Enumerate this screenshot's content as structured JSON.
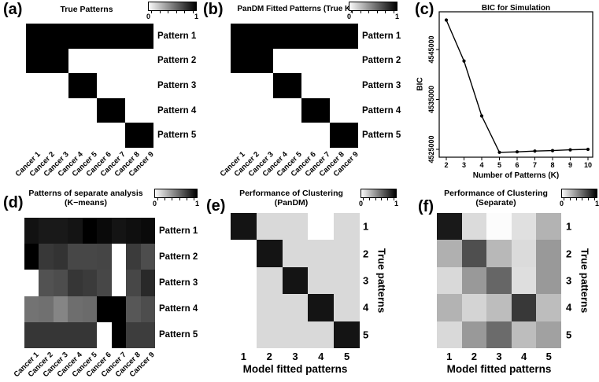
{
  "colorbar": {
    "min_label": "0",
    "max_label": "1"
  },
  "panels": {
    "a": {
      "label": "(a)",
      "title": "True Patterns"
    },
    "b": {
      "label": "(b)",
      "title": "PanDM Fitted Patterns (True K)"
    },
    "c": {
      "label": "(c)",
      "title": "BIC for Simulation",
      "xlabel": "Number of Patterns (K)",
      "ylabel": "BIC"
    },
    "d": {
      "label": "(d)",
      "title_line1": "Patterns of separate analysis",
      "title_line2": "(K−means)"
    },
    "e": {
      "label": "(e)",
      "title_line1": "Performance of Clustering",
      "title_line2": "(PanDM)",
      "xlabel": "Model fitted patterns",
      "ylabel": "True patterns"
    },
    "f": {
      "label": "(f)",
      "title_line1": "Performance of Clustering",
      "title_line2": "(Separate)",
      "xlabel": "Model fitted patterns",
      "ylabel": "True patterns"
    }
  },
  "chart_data": [
    {
      "id": "a",
      "type": "heatmap",
      "title": "True Patterns",
      "x_categories": [
        "Cancer 1",
        "Cancer 2",
        "Cancer 3",
        "Cancer 4",
        "Cancer 5",
        "Cancer 6",
        "Cancer 7",
        "Cancer 8",
        "Cancer 9"
      ],
      "y_categories": [
        "Pattern 1",
        "Pattern 2",
        "Pattern 3",
        "Pattern 4",
        "Pattern 5"
      ],
      "values": [
        [
          1,
          1,
          1,
          1,
          1,
          1,
          1,
          1,
          1
        ],
        [
          1,
          1,
          1,
          0,
          0,
          0,
          0,
          0,
          0
        ],
        [
          0,
          0,
          0,
          1,
          1,
          0,
          0,
          0,
          0
        ],
        [
          0,
          0,
          0,
          0,
          0,
          1,
          1,
          0,
          0
        ],
        [
          0,
          0,
          0,
          0,
          0,
          0,
          0,
          1,
          1
        ]
      ],
      "colorscale": {
        "0": "#ffffff",
        "1": "#000000"
      }
    },
    {
      "id": "b",
      "type": "heatmap",
      "title": "PanDM Fitted Patterns (True K)",
      "x_categories": [
        "Cancer 1",
        "Cancer 2",
        "Cancer 3",
        "Cancer 4",
        "Cancer 5",
        "Cancer 6",
        "Cancer 7",
        "Cancer 8",
        "Cancer 9"
      ],
      "y_categories": [
        "Pattern 1",
        "Pattern 2",
        "Pattern 3",
        "Pattern 4",
        "Pattern 5"
      ],
      "values": [
        [
          1,
          1,
          1,
          1,
          1,
          1,
          1,
          1,
          1
        ],
        [
          1,
          1,
          1,
          0,
          0,
          0,
          0,
          0,
          0
        ],
        [
          0,
          0,
          0,
          1,
          1,
          0,
          0,
          0,
          0
        ],
        [
          0,
          0,
          0,
          0,
          0,
          1,
          1,
          0,
          0
        ],
        [
          0,
          0,
          0,
          0,
          0,
          0,
          0,
          1,
          1
        ]
      ],
      "colorscale": {
        "0": "#ffffff",
        "1": "#000000"
      }
    },
    {
      "id": "c",
      "type": "line",
      "title": "BIC for Simulation",
      "xlabel": "Number of Patterns (K)",
      "ylabel": "BIC",
      "x": [
        2,
        3,
        4,
        5,
        6,
        7,
        8,
        9,
        10
      ],
      "y": [
        4550900,
        4542700,
        4531700,
        4524400,
        4524500,
        4524650,
        4524750,
        4524900,
        4525000
      ],
      "xticks": [
        2,
        3,
        4,
        5,
        6,
        7,
        8,
        9,
        10
      ],
      "yticks": [
        4525000,
        4535000,
        4545000
      ],
      "ylim": [
        4523400,
        4552600
      ],
      "marker": "filled-circle",
      "line_color": "#000000",
      "grid": false
    },
    {
      "id": "d",
      "type": "heatmap",
      "title": "Patterns of separate analysis (K-means)",
      "x_categories": [
        "Cancer 1",
        "Cancer 2",
        "Cancer 3",
        "Cancer 4",
        "Cancer 5",
        "Cancer 6",
        "Cancer 7",
        "Cancer 8",
        "Cancer 9"
      ],
      "y_categories": [
        "Pattern 1",
        "Pattern 2",
        "Pattern 3",
        "Pattern 4",
        "Pattern 5"
      ],
      "values": [
        [
          0.93,
          0.9,
          0.9,
          0.92,
          1.0,
          0.96,
          0.92,
          0.94,
          0.96
        ],
        [
          1.0,
          0.78,
          0.8,
          0.72,
          0.72,
          0.73,
          0.0,
          0.77,
          0.7
        ],
        [
          0.0,
          0.68,
          0.7,
          0.79,
          0.77,
          0.72,
          0.0,
          0.72,
          0.84
        ],
        [
          0.55,
          0.56,
          0.48,
          0.57,
          0.58,
          1.0,
          1.0,
          0.66,
          0.7
        ],
        [
          0.79,
          0.79,
          0.79,
          0.79,
          0.79,
          0.0,
          1.0,
          0.76,
          0.76
        ]
      ],
      "colorscale": {
        "0": "#ffffff",
        "1": "#000000"
      }
    },
    {
      "id": "e",
      "type": "heatmap",
      "title": "Performance of Clustering (PanDM)",
      "xlabel": "Model fitted patterns",
      "ylabel": "True patterns",
      "x_categories": [
        "1",
        "2",
        "3",
        "4",
        "5"
      ],
      "y_categories": [
        "1",
        "2",
        "3",
        "4",
        "5"
      ],
      "values": [
        [
          0.92,
          0.15,
          0.15,
          0.0,
          0.15
        ],
        [
          0.0,
          0.92,
          0.15,
          0.15,
          0.15
        ],
        [
          0.0,
          0.15,
          0.92,
          0.15,
          0.15
        ],
        [
          0.0,
          0.15,
          0.15,
          0.92,
          0.15
        ],
        [
          0.0,
          0.15,
          0.15,
          0.15,
          0.92
        ]
      ],
      "colorscale": {
        "0": "#ffffff",
        "1": "#000000"
      }
    },
    {
      "id": "f",
      "type": "heatmap",
      "title": "Performance of Clustering (Separate)",
      "xlabel": "Model fitted patterns",
      "ylabel": "True patterns",
      "x_categories": [
        "1",
        "2",
        "3",
        "4",
        "5"
      ],
      "y_categories": [
        "1",
        "2",
        "3",
        "4",
        "5"
      ],
      "values": [
        [
          0.9,
          0.14,
          0.01,
          0.12,
          0.3
        ],
        [
          0.31,
          0.69,
          0.28,
          0.14,
          0.4
        ],
        [
          0.15,
          0.4,
          0.6,
          0.13,
          0.4
        ],
        [
          0.3,
          0.17,
          0.26,
          0.78,
          0.26
        ],
        [
          0.15,
          0.4,
          0.58,
          0.26,
          0.37
        ]
      ],
      "colorscale": {
        "0": "#ffffff",
        "1": "#000000"
      }
    }
  ]
}
